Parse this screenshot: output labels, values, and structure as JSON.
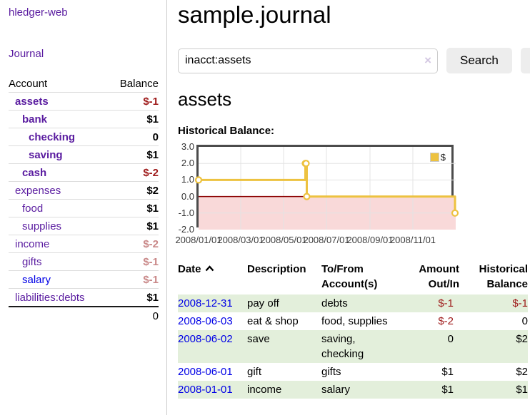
{
  "app": {
    "title": "hledger-web"
  },
  "sidebar": {
    "journal_link": "Journal",
    "accounts_header": {
      "account": "Account",
      "balance": "Balance"
    },
    "accounts": [
      {
        "name": "assets",
        "level": 1,
        "balance": "$-1",
        "bold": true,
        "neg": "strong"
      },
      {
        "name": "bank",
        "level": 2,
        "balance": "$1",
        "bold": true
      },
      {
        "name": "checking",
        "level": 3,
        "balance": "0",
        "bold": true
      },
      {
        "name": "saving",
        "level": 3,
        "balance": "$1",
        "bold": true
      },
      {
        "name": "cash",
        "level": 2,
        "balance": "$-2",
        "bold": true,
        "neg": "strong"
      },
      {
        "name": "expenses",
        "level": 1,
        "balance": "$2"
      },
      {
        "name": "food",
        "level": 2,
        "balance": "$1"
      },
      {
        "name": "supplies",
        "level": 2,
        "balance": "$1"
      },
      {
        "name": "income",
        "level": 1,
        "balance": "$-2",
        "neg": "muted"
      },
      {
        "name": "gifts",
        "level": 2,
        "balance": "$-1",
        "neg": "muted"
      },
      {
        "name": "salary",
        "level": 2,
        "balance": "$-1",
        "neg": "muted",
        "link": "blue"
      },
      {
        "name": "liabilities:debts",
        "level": 1,
        "balance": "$1"
      }
    ],
    "total": "0"
  },
  "header": {
    "title": "sample.journal"
  },
  "search": {
    "value": "inacct:assets",
    "clear_icon": "×",
    "button_label": "Search",
    "help_label": "?"
  },
  "account_page": {
    "title": "assets",
    "chart_label": "Historical Balance:"
  },
  "chart_data": {
    "type": "line",
    "step": true,
    "title": "Historical Balance",
    "series": [
      {
        "name": "$",
        "color": "#edc240",
        "points": [
          [
            "2008-01-01",
            1
          ],
          [
            "2008-06-01",
            2
          ],
          [
            "2008-06-02",
            2
          ],
          [
            "2008-06-03",
            0
          ],
          [
            "2008-12-31",
            -1
          ]
        ]
      }
    ],
    "x_range": [
      "2008-01-01",
      "2009-01-01"
    ],
    "ylim": [
      -2,
      3
    ],
    "x_ticks": [
      {
        "date": "2008-01-01",
        "label": "2008/01/01"
      },
      {
        "date": "2008-03-01",
        "label": "2008/03/01"
      },
      {
        "date": "2008-05-01",
        "label": "2008/05/01"
      },
      {
        "date": "2008-07-01",
        "label": "2008/07/01"
      },
      {
        "date": "2008-09-01",
        "label": "2008/09/01"
      },
      {
        "date": "2008-11-01",
        "label": "2008/11/01"
      }
    ],
    "y_ticks": [
      {
        "value": 3,
        "label": "3.0"
      },
      {
        "value": 2,
        "label": "2.0"
      },
      {
        "value": 1,
        "label": "1.0"
      },
      {
        "value": 0,
        "label": "0.0"
      },
      {
        "value": -1,
        "label": "-1.0"
      },
      {
        "value": -2,
        "label": "-2.0"
      }
    ],
    "grid": true,
    "grid_color": "#e3e3e3",
    "negative_region_color": "#f9d9d9",
    "zero_line_color": "#8b0000",
    "legend_position": "top-right"
  },
  "register": {
    "columns": [
      "Date",
      "Description",
      "To/From Account(s)",
      "Amount Out/In",
      "Historical Balance"
    ],
    "rows": [
      {
        "date": "2008-12-31",
        "description": "pay off",
        "accounts": "debts",
        "amount": "$-1",
        "balance": "$-1"
      },
      {
        "date": "2008-06-03",
        "description": "eat & shop",
        "accounts": "food, supplies",
        "amount": "$-2",
        "balance": "0"
      },
      {
        "date": "2008-06-02",
        "description": "save",
        "accounts": "saving, checking",
        "amount": "0",
        "balance": "$2"
      },
      {
        "date": "2008-06-01",
        "description": "gift",
        "accounts": "gifts",
        "amount": "$1",
        "balance": "$2"
      },
      {
        "date": "2008-01-01",
        "description": "income",
        "accounts": "salary",
        "amount": "$1",
        "balance": "$1"
      }
    ]
  },
  "colors": {
    "link_purple": "#5a1ca0",
    "link_blue": "#0000e6",
    "negative_strong": "#9e1a1a",
    "negative_muted": "#c98888",
    "row_stripe_green": "#e3efdb",
    "series_gold": "#edc240"
  }
}
